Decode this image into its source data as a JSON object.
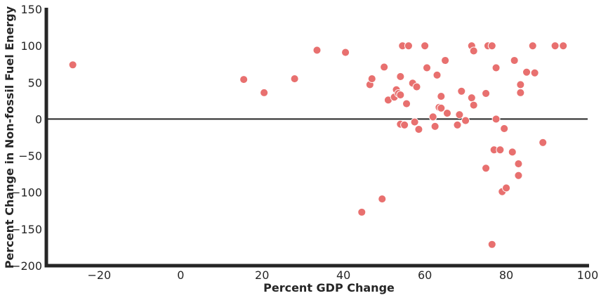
{
  "chart_data": {
    "type": "scatter",
    "title": "",
    "xlabel": "Percent GDP Change",
    "ylabel": "Percent Change in Non-fossil Fuel Energy",
    "xlim": [
      -33,
      100
    ],
    "ylim": [
      -200,
      150
    ],
    "xticks": [
      -20,
      0,
      20,
      40,
      60,
      80,
      100
    ],
    "yticks": [
      -200,
      -150,
      -100,
      -50,
      0,
      50,
      100,
      150
    ],
    "xtick_labels": [
      "−20",
      "0",
      "20",
      "40",
      "60",
      "80",
      "100"
    ],
    "ytick_labels": [
      "−200",
      "−150",
      "−100",
      "−50",
      "0",
      "50",
      "100",
      "150"
    ],
    "grid": false,
    "reference_line_y": 0,
    "point_color": "#e8706f",
    "series": [
      {
        "points": [
          [
            -26.5,
            74
          ],
          [
            15.5,
            54
          ],
          [
            20.5,
            36
          ],
          [
            28,
            55
          ],
          [
            33.5,
            94
          ],
          [
            40.5,
            91
          ],
          [
            44.5,
            -127
          ],
          [
            46.5,
            47
          ],
          [
            47,
            55
          ],
          [
            49.5,
            -109
          ],
          [
            50,
            71
          ],
          [
            51,
            26
          ],
          [
            52.5,
            30
          ],
          [
            53,
            40
          ],
          [
            53.5,
            35
          ],
          [
            54,
            58
          ],
          [
            54,
            33
          ],
          [
            54,
            -7
          ],
          [
            54.5,
            100
          ],
          [
            55,
            -8
          ],
          [
            55.5,
            21
          ],
          [
            56,
            100
          ],
          [
            57,
            49
          ],
          [
            57.5,
            -4
          ],
          [
            58,
            44
          ],
          [
            58.5,
            -14
          ],
          [
            60,
            100
          ],
          [
            60.5,
            70
          ],
          [
            62,
            3
          ],
          [
            62.5,
            -10
          ],
          [
            63,
            60
          ],
          [
            63.5,
            16
          ],
          [
            64,
            31
          ],
          [
            64,
            15
          ],
          [
            65,
            80
          ],
          [
            65.5,
            8
          ],
          [
            68,
            -8
          ],
          [
            68.5,
            6
          ],
          [
            69,
            38
          ],
          [
            70,
            -2
          ],
          [
            71.5,
            100
          ],
          [
            71.5,
            29
          ],
          [
            72,
            93
          ],
          [
            72,
            19
          ],
          [
            75,
            35
          ],
          [
            75.5,
            100
          ],
          [
            75,
            -67
          ],
          [
            76.5,
            100
          ],
          [
            76.5,
            -171
          ],
          [
            77,
            -42
          ],
          [
            77.5,
            70
          ],
          [
            77.5,
            0
          ],
          [
            78.5,
            -42
          ],
          [
            79,
            -99
          ],
          [
            79.5,
            -13
          ],
          [
            80,
            -94
          ],
          [
            81.5,
            -45
          ],
          [
            82,
            80
          ],
          [
            83,
            -61
          ],
          [
            83,
            -77
          ],
          [
            83.5,
            47
          ],
          [
            83.5,
            36
          ],
          [
            85,
            64
          ],
          [
            86.5,
            100
          ],
          [
            87,
            63
          ],
          [
            89,
            -32
          ],
          [
            92,
            100
          ],
          [
            94,
            100
          ]
        ]
      }
    ]
  }
}
